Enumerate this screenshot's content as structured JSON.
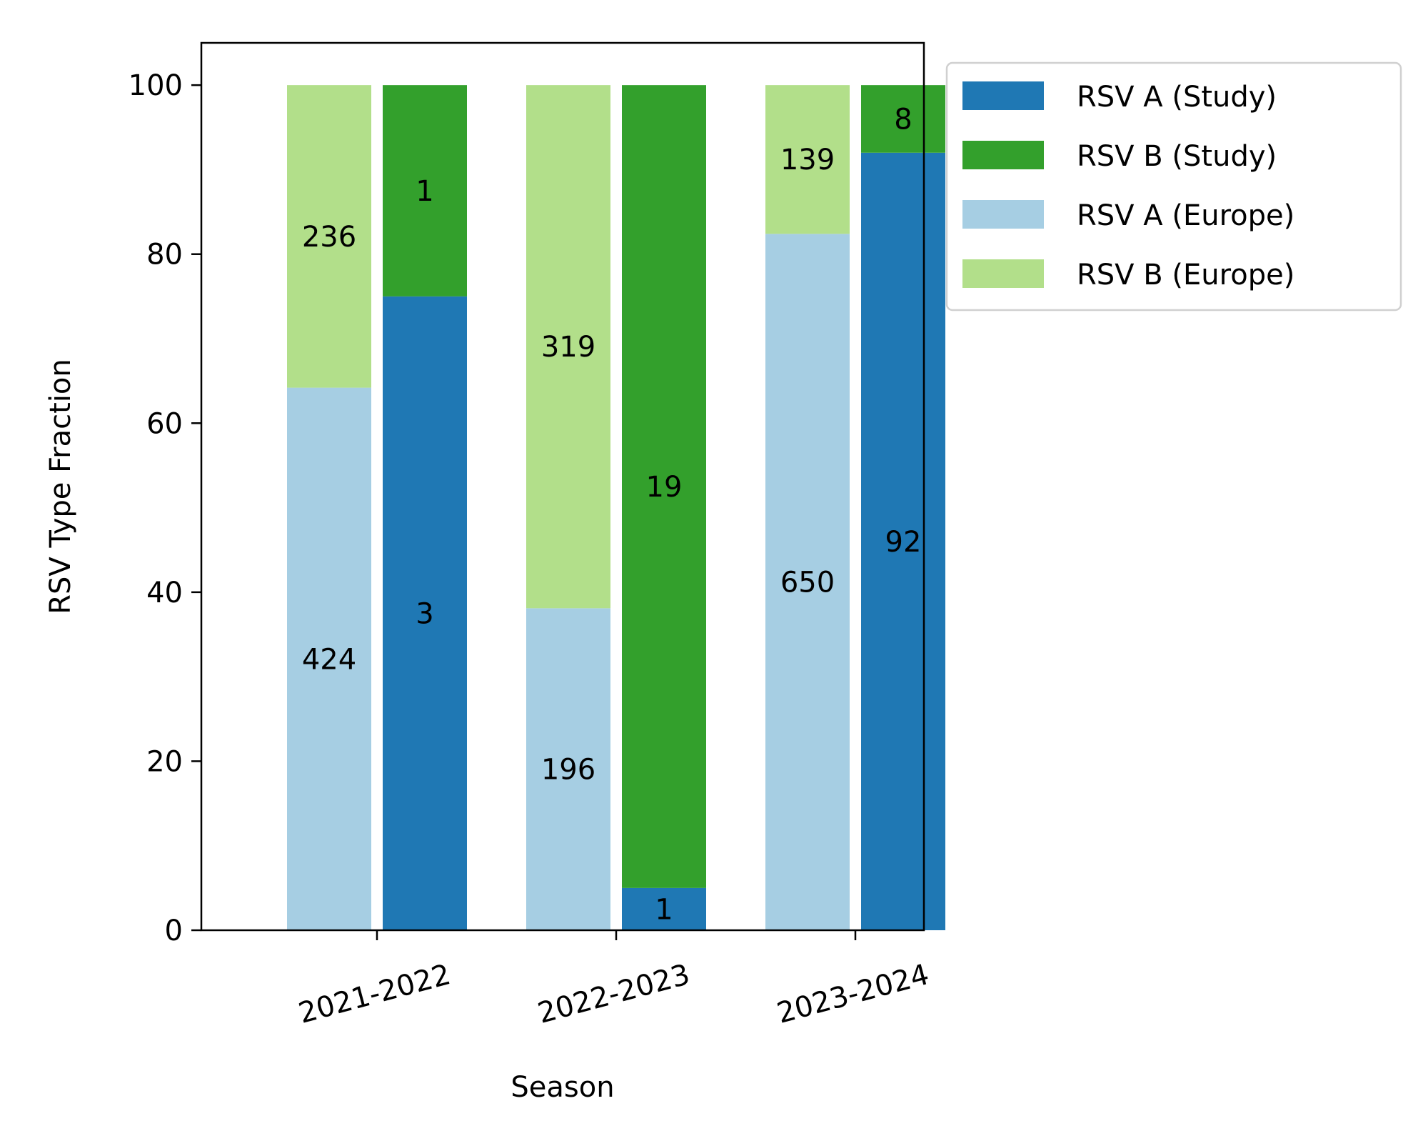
{
  "chart_data": {
    "type": "bar",
    "stacked": true,
    "title": "",
    "xlabel": "Season",
    "ylabel": "RSV Type Fraction",
    "ylim": [
      0,
      105
    ],
    "yticks": [
      0,
      20,
      40,
      60,
      80,
      100
    ],
    "categories": [
      "2021-2022",
      "2022-2023",
      "2023-2024"
    ],
    "legend_position": "outside-top-right",
    "series": [
      {
        "name": "RSV A (Study)",
        "color": "#1f78b4",
        "group": "Study",
        "values": [
          75.0,
          5.0,
          92.0
        ],
        "counts": [
          "3",
          "1",
          "92"
        ]
      },
      {
        "name": "RSV B (Study)",
        "color": "#33a02c",
        "group": "Study",
        "values": [
          25.0,
          95.0,
          8.0
        ],
        "counts": [
          "1",
          "19",
          "8"
        ]
      },
      {
        "name": "RSV A (Europe)",
        "color": "#a6cee3",
        "group": "Europe",
        "values": [
          64.2,
          38.1,
          82.4
        ],
        "counts": [
          "424",
          "196",
          "650"
        ]
      },
      {
        "name": "RSV B (Europe)",
        "color": "#b2df8a",
        "group": "Europe",
        "values": [
          35.8,
          61.9,
          17.6
        ],
        "counts": [
          "236",
          "319",
          "139"
        ]
      }
    ]
  }
}
